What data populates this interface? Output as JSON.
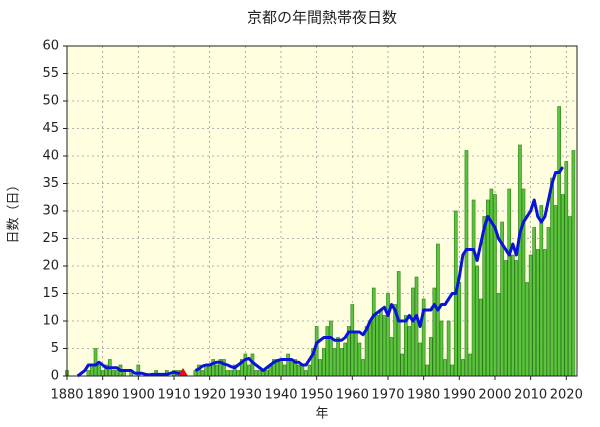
{
  "chart_data": {
    "type": "bar+line",
    "title": "京都の年間熱帯夜日数",
    "x_label": "年",
    "y_label": "日数（日）",
    "x": [
      1880,
      1881,
      1882,
      1883,
      1884,
      1885,
      1886,
      1887,
      1888,
      1889,
      1890,
      1891,
      1892,
      1893,
      1894,
      1895,
      1896,
      1897,
      1898,
      1899,
      1900,
      1901,
      1902,
      1903,
      1904,
      1905,
      1906,
      1907,
      1908,
      1909,
      1910,
      1911,
      1912,
      1913,
      1914,
      1915,
      1916,
      1917,
      1918,
      1919,
      1920,
      1921,
      1922,
      1923,
      1924,
      1925,
      1926,
      1927,
      1928,
      1929,
      1930,
      1931,
      1932,
      1933,
      1934,
      1935,
      1936,
      1937,
      1938,
      1939,
      1940,
      1941,
      1942,
      1943,
      1944,
      1945,
      1946,
      1947,
      1948,
      1949,
      1950,
      1951,
      1952,
      1953,
      1954,
      1955,
      1956,
      1957,
      1958,
      1959,
      1960,
      1961,
      1962,
      1963,
      1964,
      1965,
      1966,
      1967,
      1968,
      1969,
      1970,
      1971,
      1972,
      1973,
      1974,
      1975,
      1976,
      1977,
      1978,
      1979,
      1980,
      1981,
      1982,
      1983,
      1984,
      1985,
      1986,
      1987,
      1988,
      1989,
      1990,
      1991,
      1992,
      1993,
      1994,
      1995,
      1996,
      1997,
      1998,
      1999,
      2000,
      2001,
      2002,
      2003,
      2004,
      2005,
      2006,
      2007,
      2008,
      2009,
      2010,
      2011,
      2012,
      2013,
      2014,
      2015,
      2016,
      2017,
      2018,
      2019,
      2020,
      2021,
      2022
    ],
    "series": [
      {
        "type": "bar",
        "color": "#5cc43c",
        "values": [
          1,
          0,
          0,
          0,
          0,
          0,
          1,
          2,
          5,
          2,
          1,
          2,
          3,
          1,
          1,
          2,
          1,
          0,
          1,
          0,
          2,
          0,
          0,
          0,
          0,
          1,
          0,
          0,
          1,
          0,
          1,
          1,
          1,
          0,
          0,
          0,
          1,
          2,
          1,
          2,
          2,
          3,
          2,
          3,
          3,
          1,
          1,
          2,
          1,
          3,
          4,
          2,
          4,
          1,
          1,
          1,
          1,
          2,
          3,
          3,
          3,
          2,
          4,
          3,
          3,
          2,
          2,
          1,
          2,
          5,
          9,
          3,
          5,
          9,
          10,
          5,
          7,
          5,
          6,
          9,
          13,
          8,
          6,
          3,
          9,
          10,
          16,
          11,
          12,
          11,
          15,
          7,
          13,
          19,
          4,
          11,
          9,
          16,
          18,
          6,
          14,
          2,
          7,
          16,
          24,
          10,
          3,
          10,
          2,
          30,
          17,
          3,
          41,
          4,
          32,
          20,
          14,
          29,
          32,
          34,
          33,
          15,
          28,
          21,
          34,
          22,
          21,
          42,
          34,
          17,
          22,
          27,
          23,
          31,
          23,
          27,
          36,
          31,
          49,
          33,
          39,
          29,
          41
        ]
      },
      {
        "type": "line",
        "color": "#0a14d8",
        "values": [
          null,
          null,
          null,
          0,
          0.5,
          1,
          2,
          2,
          2,
          2.5,
          2,
          1.5,
          1.5,
          1.5,
          1.5,
          1,
          1,
          1,
          1,
          0.5,
          0.5,
          0.5,
          0.3,
          0.2,
          0.3,
          0.3,
          0.3,
          0.3,
          0.3,
          0.5,
          0.7,
          0.5,
          0.5,
          null,
          null,
          null,
          1,
          1.3,
          1.8,
          2,
          2,
          2.3,
          2.5,
          2.5,
          2.2,
          2,
          1.7,
          1.5,
          2,
          2.5,
          3,
          3.2,
          2.5,
          2,
          1.5,
          1,
          1.5,
          2,
          2.5,
          2.8,
          3,
          3,
          3,
          3,
          2.5,
          2.5,
          2,
          2,
          3,
          4,
          6,
          6.5,
          7,
          7,
          7,
          6.5,
          6.5,
          6.5,
          7,
          8,
          8,
          8,
          8,
          7.5,
          8.5,
          10,
          11,
          11.5,
          12,
          12.5,
          11,
          13,
          12,
          10,
          10,
          10,
          11,
          10,
          11,
          9,
          12,
          12,
          12,
          13,
          12,
          13,
          13,
          14,
          15,
          15,
          18,
          22,
          23,
          23,
          23,
          21,
          24,
          27,
          29,
          28,
          27,
          25,
          24,
          23,
          22,
          24,
          22,
          26,
          28,
          29,
          30,
          32,
          29,
          28,
          29,
          32,
          35,
          37,
          37,
          38,
          null,
          null,
          null
        ]
      }
    ],
    "xlim": [
      1880,
      2023
    ],
    "ylim": [
      0,
      60
    ],
    "xticks": [
      1880,
      1890,
      1900,
      1910,
      1920,
      1930,
      1940,
      1950,
      1960,
      1970,
      1980,
      1990,
      2000,
      2010,
      2020
    ],
    "yticks": [
      0,
      5,
      10,
      15,
      20,
      25,
      30,
      35,
      40,
      45,
      50,
      55,
      60
    ],
    "grid": true
  }
}
